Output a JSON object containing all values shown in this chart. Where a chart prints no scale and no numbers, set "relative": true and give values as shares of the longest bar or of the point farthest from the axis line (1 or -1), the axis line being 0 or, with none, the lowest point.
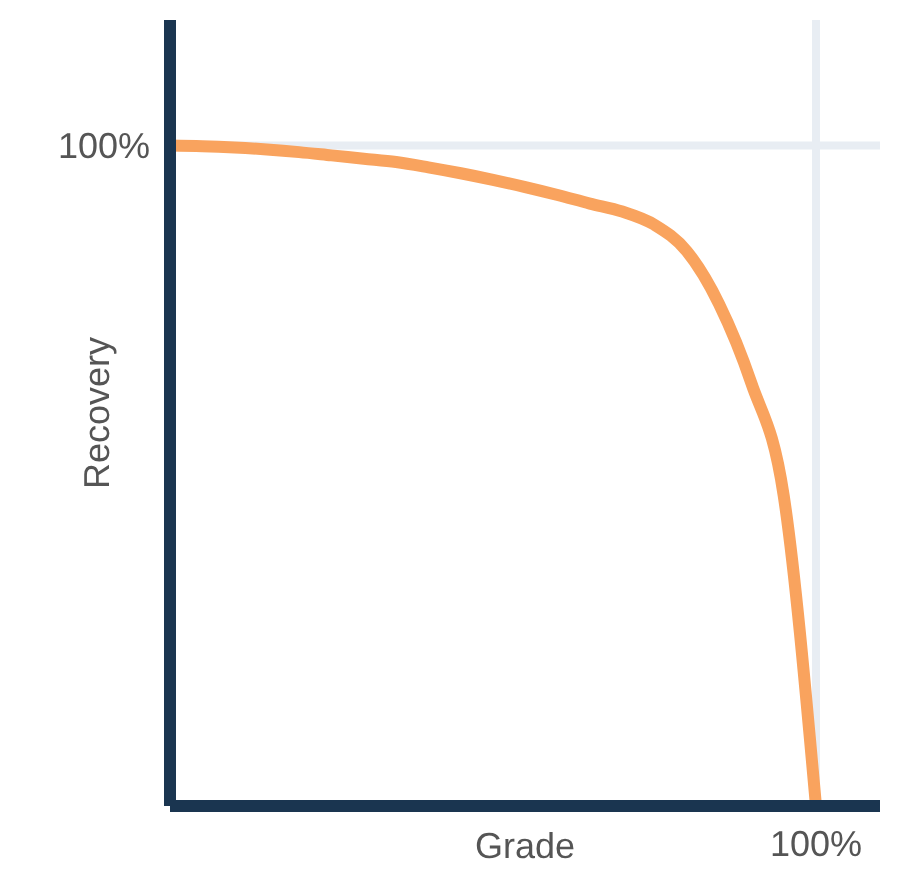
{
  "chart_data": {
    "type": "line",
    "xlabel": "Grade",
    "ylabel": "Recovery",
    "relative": true,
    "categories": [
      null,
      null,
      null,
      null,
      null,
      null,
      null,
      null,
      null,
      null,
      null,
      null,
      null,
      null,
      null,
      null,
      null,
      null,
      null,
      null,
      null
    ],
    "series": [
      {
        "color": "#f9a35e",
        "values": [
          1,
          0.999,
          0.997,
          0.994,
          0.99,
          0.985,
          0.98,
          0.975,
          0.967,
          0.958,
          0.948,
          0.937,
          0.925,
          0.912,
          0.9,
          0.88,
          0.84,
          0.76,
          0.64,
          0.47,
          0
        ]
      }
    ],
    "ref_lines": [
      {
        "axis": "y",
        "value": 1,
        "label": "100%",
        "color": "#e8edf3"
      }
    ],
    "annotations": [
      "100%"
    ]
  }
}
